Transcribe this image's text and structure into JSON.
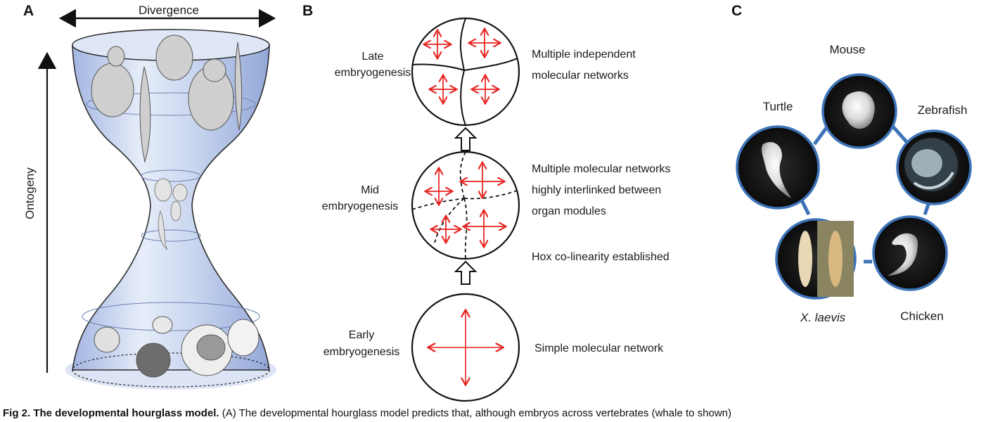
{
  "panels": {
    "a": {
      "letter": "A",
      "top_axis_label": "Divergence",
      "side_axis_label": "Ontogeny"
    },
    "b": {
      "letter": "B",
      "stages": [
        {
          "stage_label_line1": "Late",
          "stage_label_line2": "embryogenesis",
          "description_lines": [
            "Multiple independent",
            "molecular networks"
          ]
        },
        {
          "stage_label_line1": "Mid",
          "stage_label_line2": "embryogenesis",
          "description_lines": [
            "Multiple molecular networks",
            "highly interlinked between",
            "organ modules"
          ],
          "extra_note": "Hox co-linearity established"
        },
        {
          "stage_label_line1": "Early",
          "stage_label_line2": "embryogenesis",
          "description_lines": [
            "Simple molecular network"
          ]
        }
      ]
    },
    "c": {
      "letter": "C",
      "species": [
        "Mouse",
        "Zebrafish",
        "Chicken",
        "X. laevis",
        "Turtle"
      ],
      "ring_color": "#3d73b8"
    }
  },
  "caption": {
    "bold_part": "Fig 2. The developmental hourglass model.",
    "rest": " (A) The developmental hourglass model predicts that, although embryos across vertebrates (whale to shown)"
  }
}
